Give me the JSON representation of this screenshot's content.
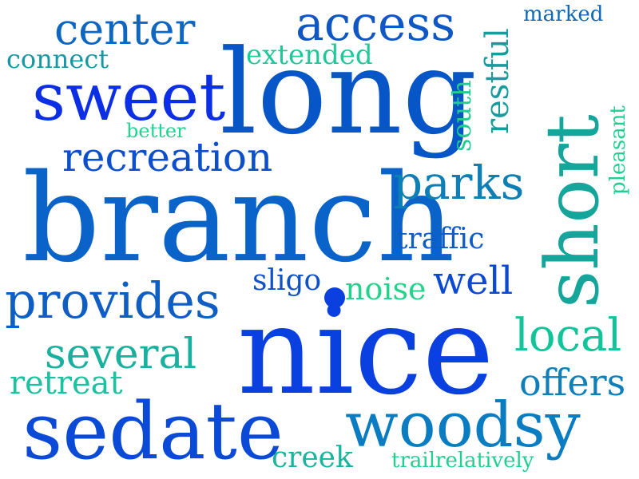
{
  "words": [
    {
      "text": "branch",
      "color": "#0a63c9"
    },
    {
      "text": "nice",
      "color": "#0a3fe0"
    },
    {
      "text": "long",
      "color": "#0656c8"
    },
    {
      "text": "short",
      "color": "#16a59a"
    },
    {
      "text": "sedate",
      "color": "#0a4ad6"
    },
    {
      "text": "sweet",
      "color": "#0c2fe6"
    },
    {
      "text": "woodsy",
      "color": "#0a7cc2"
    },
    {
      "text": "provides",
      "color": "#0e5ec4"
    },
    {
      "text": "access",
      "color": "#0e57c4"
    },
    {
      "text": "center",
      "color": "#0c66c2"
    },
    {
      "text": "recreation",
      "color": "#0b4fcc"
    },
    {
      "text": "parks",
      "color": "#0d7fb5"
    },
    {
      "text": "several",
      "color": "#18b09e"
    },
    {
      "text": "local",
      "color": "#13c49a"
    },
    {
      "text": "offers",
      "color": "#0d7fba"
    },
    {
      "text": "well",
      "color": "#0b49d2"
    },
    {
      "text": "retreat",
      "color": "#1bc2a0"
    },
    {
      "text": "traffic",
      "color": "#0d5cc7"
    },
    {
      "text": "extended",
      "color": "#20c79a"
    },
    {
      "text": "connect",
      "color": "#1597a6"
    },
    {
      "text": "restful",
      "color": "#179c9e"
    },
    {
      "text": "south",
      "color": "#22cc93"
    },
    {
      "text": "creek",
      "color": "#1ab39d"
    },
    {
      "text": "noise",
      "color": "#22d48a"
    },
    {
      "text": "sligo",
      "color": "#0f52c6"
    },
    {
      "text": "marked",
      "color": "#0e6ab8"
    },
    {
      "text": "pleasant",
      "color": "#20d08f"
    },
    {
      "text": "better",
      "color": "#1fd58f"
    },
    {
      "text": "trailrelatively",
      "color": "#22ce90"
    }
  ]
}
